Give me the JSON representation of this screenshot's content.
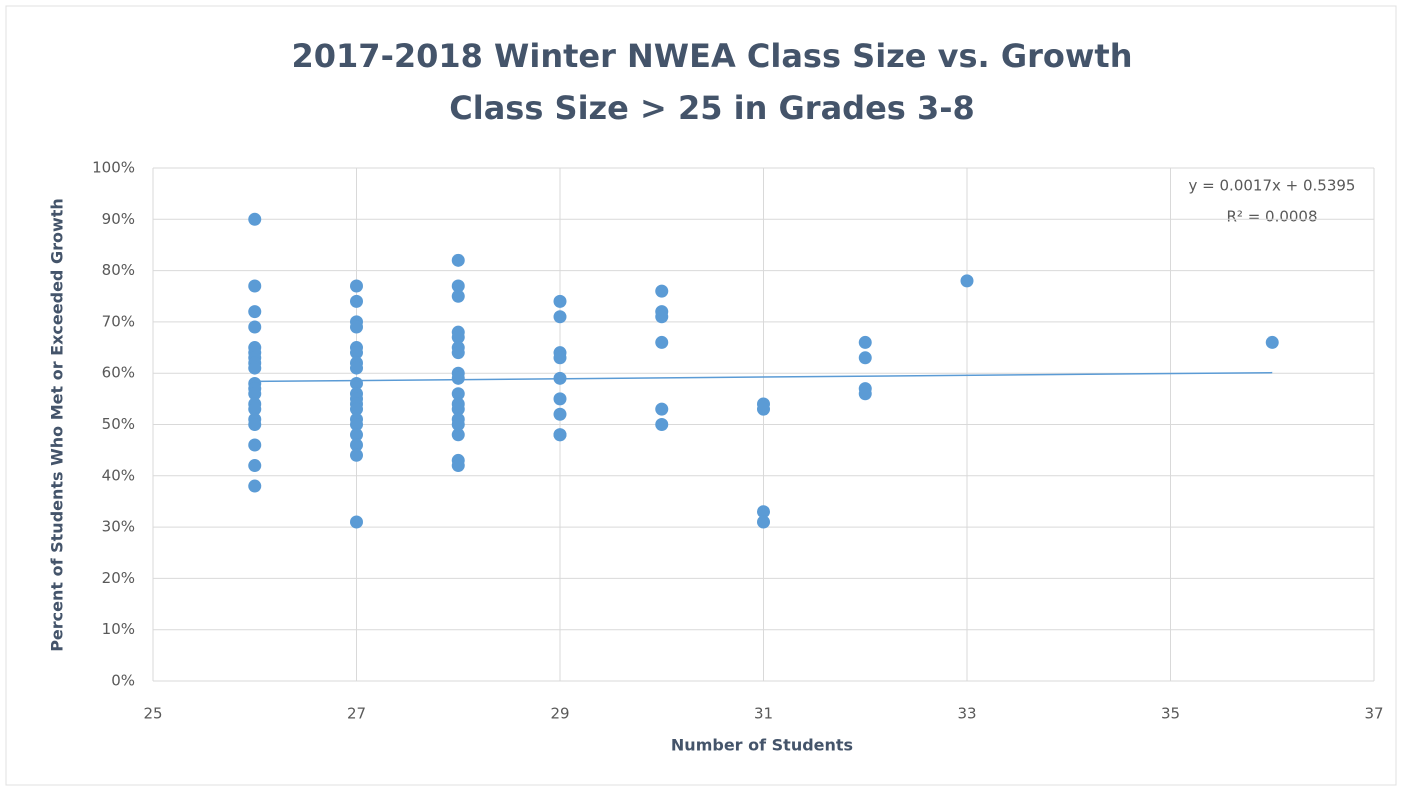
{
  "chart_data": {
    "type": "scatter",
    "title": "2017-2018 Winter NWEA Class Size vs. Growth",
    "subtitle": "Class Size > 25 in Grades 3-8",
    "xlabel": "Number of Students",
    "ylabel": "Percent of Students Who Met or Exceeded Growth",
    "annotations": [
      "y = 0.0017x + 0.5395",
      "R² = 0.0008"
    ],
    "grid": true,
    "color": "#5b9bd5",
    "xlim": [
      25,
      37
    ],
    "xticks": [
      25,
      27,
      29,
      31,
      33,
      35,
      37
    ],
    "ylim": [
      0,
      100
    ],
    "yticks": [
      {
        "value": 0,
        "label": "0%"
      },
      {
        "value": 10,
        "label": "10%"
      },
      {
        "value": 20,
        "label": "20%"
      },
      {
        "value": 30,
        "label": "30%"
      },
      {
        "value": 40,
        "label": "40%"
      },
      {
        "value": 50,
        "label": "50%"
      },
      {
        "value": 60,
        "label": "60%"
      },
      {
        "value": 70,
        "label": "70%"
      },
      {
        "value": 80,
        "label": "80%"
      },
      {
        "value": 90,
        "label": "90%"
      },
      {
        "value": 100,
        "label": "100%"
      }
    ],
    "x": [
      26,
      26,
      26,
      26,
      26,
      26,
      26,
      26,
      26,
      26,
      26,
      26,
      26,
      26,
      26,
      26,
      26,
      26,
      26,
      27,
      27,
      27,
      27,
      27,
      27,
      27,
      27,
      27,
      27,
      27,
      27,
      27,
      27,
      27,
      27,
      27,
      27,
      27,
      28,
      28,
      28,
      28,
      28,
      28,
      28,
      28,
      28,
      28,
      28,
      28,
      28,
      28,
      28,
      28,
      28,
      29,
      29,
      29,
      29,
      29,
      29,
      29,
      29,
      29,
      30,
      30,
      30,
      30,
      30,
      30,
      31,
      31,
      31,
      31,
      32,
      32,
      32,
      32,
      33,
      36
    ],
    "values": [
      90,
      77,
      72,
      69,
      65,
      64,
      63,
      62,
      61,
      58,
      57,
      56,
      54,
      53,
      51,
      50,
      46,
      42,
      38,
      77,
      74,
      70,
      69,
      65,
      64,
      62,
      61,
      58,
      56,
      55,
      54,
      53,
      51,
      50,
      48,
      46,
      44,
      31,
      82,
      77,
      75,
      68,
      67,
      65,
      64,
      60,
      59,
      56,
      54,
      53,
      51,
      50,
      48,
      43,
      42,
      74,
      71,
      64,
      63,
      59,
      55,
      52,
      48,
      48,
      76,
      72,
      71,
      66,
      53,
      50,
      54,
      53,
      33,
      31,
      66,
      63,
      57,
      56,
      78,
      66
    ],
    "trendline": {
      "x": [
        26,
        36
      ],
      "values": [
        58.4,
        60.1
      ]
    }
  }
}
